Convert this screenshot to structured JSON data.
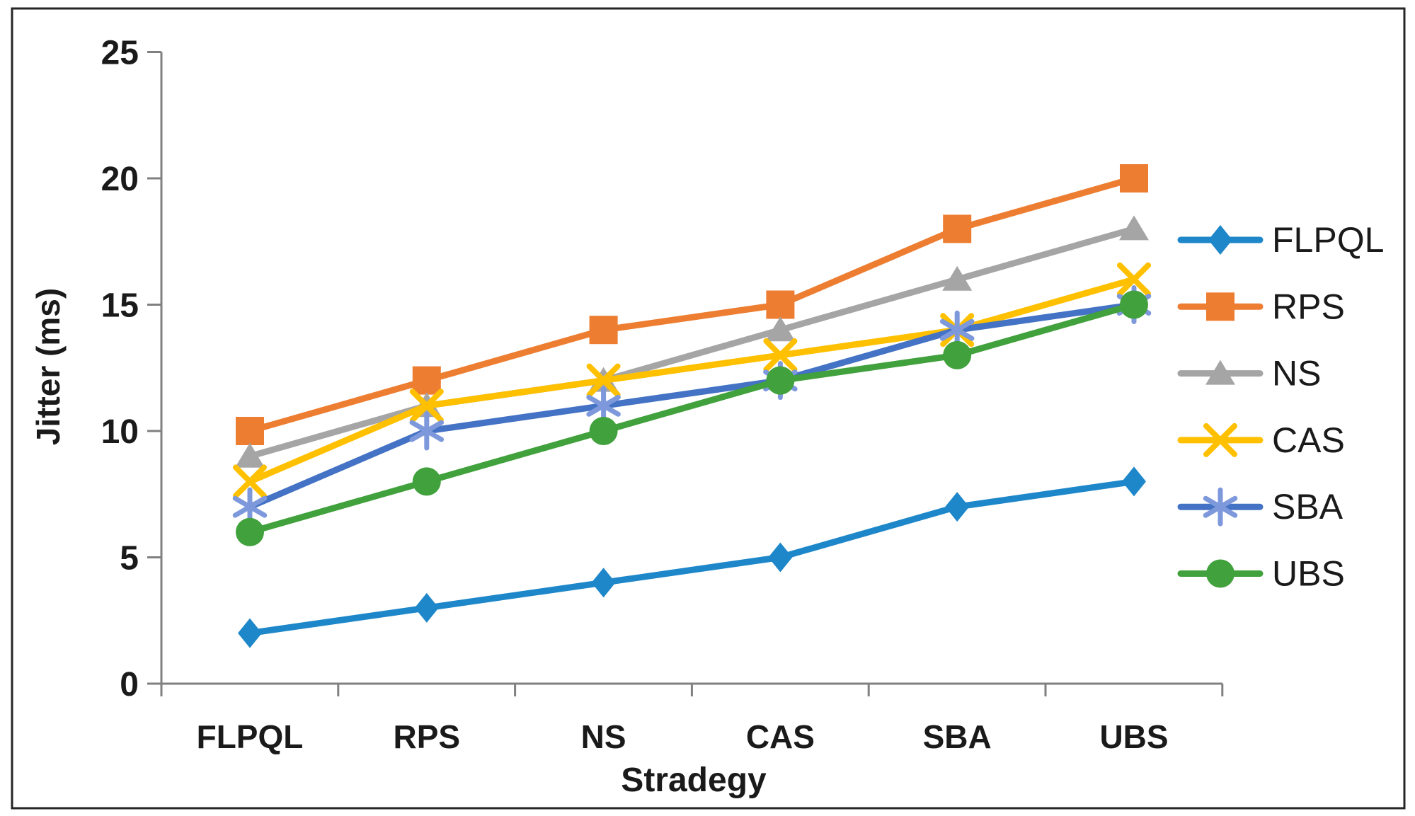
{
  "chart_data": {
    "type": "line",
    "title": "",
    "xlabel": "Stradegy",
    "ylabel": "Jitter (ms)",
    "categories": [
      "FLPQL",
      "RPS",
      "NS",
      "CAS",
      "SBA",
      "UBS"
    ],
    "ylim": [
      0,
      25
    ],
    "ytick_step": 5,
    "grid": false,
    "legend_position": "right",
    "axis_color": "#808080",
    "text_color": "#1a1a1a",
    "frame_color": "#262626",
    "background_color": "#ffffff",
    "series": [
      {
        "name": "FLPQL",
        "color": "#1E87C9",
        "marker": "diamond",
        "values": [
          2,
          3,
          4,
          5,
          7,
          8
        ]
      },
      {
        "name": "RPS",
        "color": "#ED7D31",
        "marker": "square",
        "values": [
          10,
          12,
          14,
          15,
          18,
          20
        ]
      },
      {
        "name": "NS",
        "color": "#A5A5A5",
        "marker": "triangle",
        "values": [
          9,
          11,
          12,
          14,
          16,
          18
        ]
      },
      {
        "name": "CAS",
        "color": "#FFC000",
        "marker": "x",
        "values": [
          8,
          11,
          12,
          13,
          14,
          16
        ]
      },
      {
        "name": "SBA",
        "color": "#4472C4",
        "marker": "asterisk",
        "marker_accent": "#7D99DC",
        "values": [
          7,
          10,
          11,
          12,
          14,
          15
        ]
      },
      {
        "name": "UBS",
        "color": "#41A13C",
        "marker": "circle",
        "values": [
          6,
          8,
          10,
          12,
          13,
          15
        ]
      }
    ]
  }
}
